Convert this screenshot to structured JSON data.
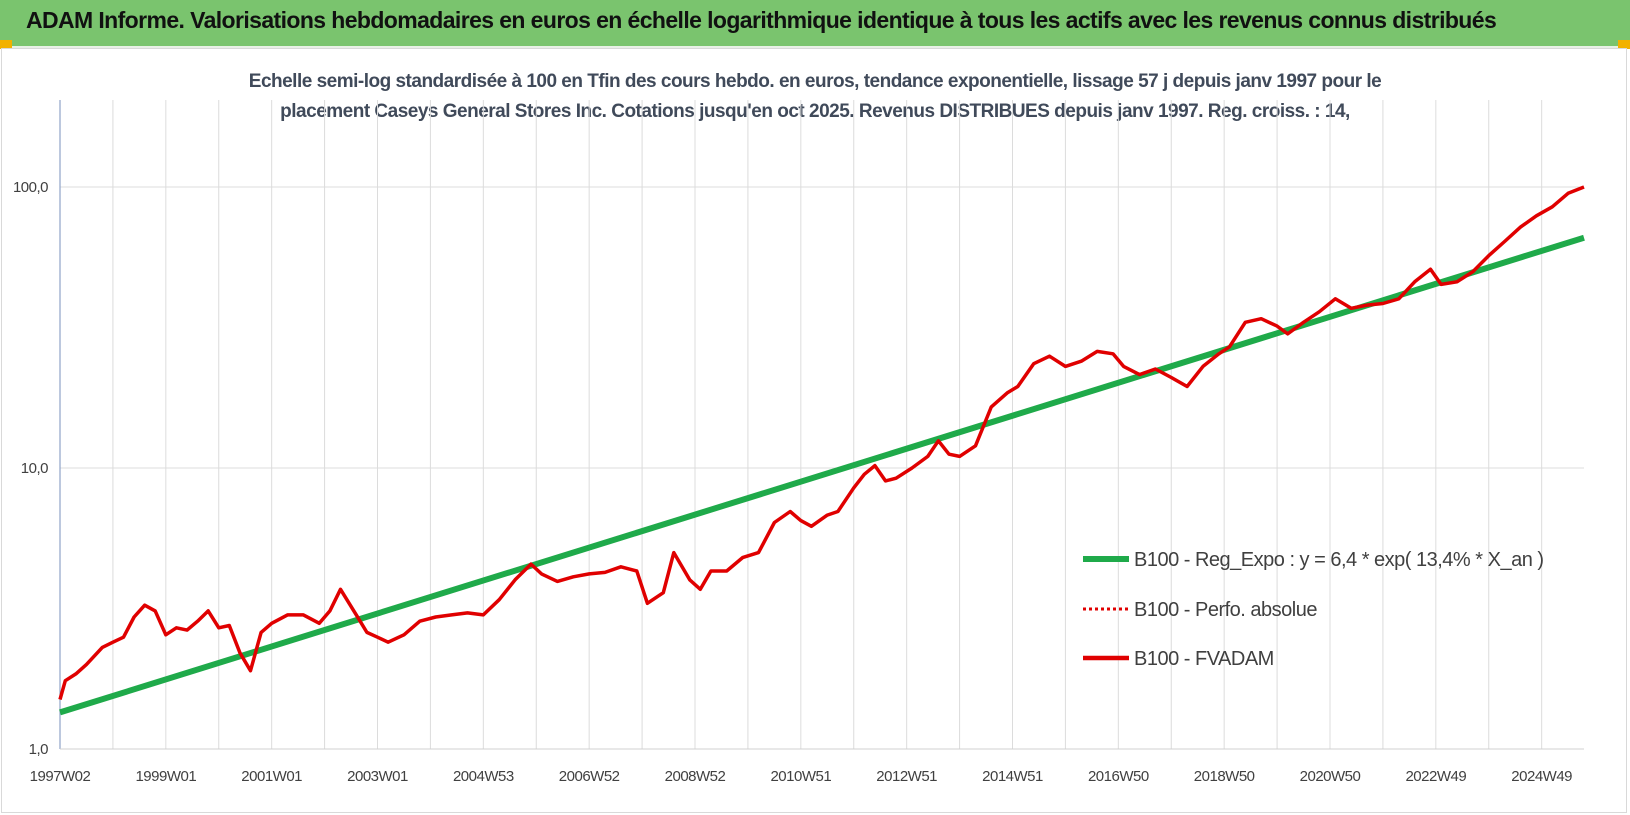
{
  "header": {
    "title": "ADAM Informe. Valorisations hebdomadaires en euros en échelle logarithmique identique à tous les actifs avec les revenus connus distribués"
  },
  "colors": {
    "banner": "#7ac46e",
    "corner": "#f2b100",
    "regression": "#1faa4a",
    "fvadam": "#e00000",
    "perfo": "#e00000",
    "grid": "#dcdcdc",
    "axis": "#8fa3c9"
  },
  "chart_data": {
    "type": "line",
    "subtitle_line1": "Echelle semi-log standardisée à 100 en Tfin des cours hebdo. en euros, tendance exponentielle, lissage 57 j depuis janv 1997 pour le",
    "subtitle_line2": "placement Caseys General Stores Inc.  Cotations jusqu'en oct 2025.  Revenus DISTRIBUES depuis janv 1997.  Reg. croiss. : 14,",
    "y_scale": "log",
    "ylim": [
      1,
      100
    ],
    "y_ticks": [
      {
        "value": 1,
        "label": "1,0"
      },
      {
        "value": 10,
        "label": "10,0"
      },
      {
        "value": 100,
        "label": "100,0"
      }
    ],
    "x_range": [
      1997.0,
      2025.8
    ],
    "x_ticks": [
      {
        "value": 1997.0,
        "label": "1997W02"
      },
      {
        "value": 1999.0,
        "label": "1999W01"
      },
      {
        "value": 2001.0,
        "label": "2001W01"
      },
      {
        "value": 2003.0,
        "label": "2003W01"
      },
      {
        "value": 2005.0,
        "label": "2004W53"
      },
      {
        "value": 2007.0,
        "label": "2006W52"
      },
      {
        "value": 2009.0,
        "label": "2008W52"
      },
      {
        "value": 2011.0,
        "label": "2010W51"
      },
      {
        "value": 2013.0,
        "label": "2012W51"
      },
      {
        "value": 2015.0,
        "label": "2014W51"
      },
      {
        "value": 2017.0,
        "label": "2016W50"
      },
      {
        "value": 2019.0,
        "label": "2018W50"
      },
      {
        "value": 2021.0,
        "label": "2020W50"
      },
      {
        "value": 2023.0,
        "label": "2022W49"
      },
      {
        "value": 2025.0,
        "label": "2024W49"
      }
    ],
    "grid": true,
    "legend_position": "right",
    "series": [
      {
        "name": "B100 - Reg_Expo : y = 6,4 * exp( 13,4% *  X_an )",
        "style": "solid-thick",
        "x": [
          1997.0,
          2025.8
        ],
        "y": [
          1.35,
          66.0
        ]
      },
      {
        "name": "B100 - Perfo. absolue",
        "style": "dotted",
        "x": [],
        "y": []
      },
      {
        "name": "B100 - FVADAM",
        "style": "solid",
        "x": [
          1997.0,
          1997.1,
          1997.3,
          1997.5,
          1997.8,
          1998.0,
          1998.2,
          1998.4,
          1998.6,
          1998.8,
          1999.0,
          1999.2,
          1999.4,
          1999.6,
          1999.8,
          2000.0,
          2000.2,
          2000.4,
          2000.6,
          2000.8,
          2001.0,
          2001.3,
          2001.6,
          2001.9,
          2002.1,
          2002.3,
          2002.6,
          2002.8,
          2003.0,
          2003.2,
          2003.5,
          2003.8,
          2004.1,
          2004.4,
          2004.7,
          2005.0,
          2005.3,
          2005.6,
          2005.9,
          2006.1,
          2006.4,
          2006.7,
          2007.0,
          2007.3,
          2007.6,
          2007.9,
          2008.1,
          2008.4,
          2008.6,
          2008.9,
          2009.1,
          2009.3,
          2009.6,
          2009.9,
          2010.2,
          2010.5,
          2010.8,
          2011.0,
          2011.2,
          2011.5,
          2011.7,
          2012.0,
          2012.2,
          2012.4,
          2012.6,
          2012.8,
          2013.1,
          2013.4,
          2013.6,
          2013.8,
          2014.0,
          2014.3,
          2014.6,
          2014.9,
          2015.1,
          2015.4,
          2015.7,
          2016.0,
          2016.3,
          2016.6,
          2016.9,
          2017.1,
          2017.4,
          2017.7,
          2018.0,
          2018.3,
          2018.6,
          2018.9,
          2019.1,
          2019.4,
          2019.7,
          2020.0,
          2020.2,
          2020.5,
          2020.8,
          2021.1,
          2021.4,
          2021.7,
          2022.0,
          2022.3,
          2022.6,
          2022.9,
          2023.1,
          2023.4,
          2023.7,
          2024.0,
          2024.3,
          2024.6,
          2024.9,
          2025.2,
          2025.5,
          2025.8
        ],
        "y": [
          1.5,
          1.75,
          1.85,
          2.0,
          2.3,
          2.4,
          2.5,
          2.95,
          3.25,
          3.1,
          2.55,
          2.7,
          2.65,
          2.85,
          3.1,
          2.7,
          2.75,
          2.2,
          1.9,
          2.6,
          2.8,
          3.0,
          3.0,
          2.8,
          3.1,
          3.7,
          3.0,
          2.6,
          2.5,
          2.4,
          2.55,
          2.85,
          2.95,
          3.0,
          3.05,
          3.0,
          3.4,
          4.0,
          4.55,
          4.2,
          3.95,
          4.1,
          4.2,
          4.25,
          4.45,
          4.3,
          3.3,
          3.6,
          5.0,
          4.0,
          3.7,
          4.3,
          4.3,
          4.8,
          5.0,
          6.4,
          7.0,
          6.5,
          6.2,
          6.8,
          7.0,
          8.5,
          9.5,
          10.2,
          9.0,
          9.2,
          10.0,
          11.0,
          12.5,
          11.2,
          11.0,
          12.0,
          16.5,
          18.5,
          19.5,
          23.5,
          25.0,
          23.0,
          24.0,
          26.0,
          25.5,
          23.0,
          21.5,
          22.5,
          21.0,
          19.5,
          23.0,
          25.5,
          27.0,
          33.0,
          34.0,
          32.0,
          30.0,
          33.0,
          36.0,
          40.0,
          37.0,
          38.0,
          38.5,
          40.0,
          46.0,
          51.0,
          45.0,
          46.0,
          50.0,
          57.0,
          64.0,
          72.0,
          79.0,
          85.0,
          95.0,
          100.0
        ]
      }
    ]
  }
}
